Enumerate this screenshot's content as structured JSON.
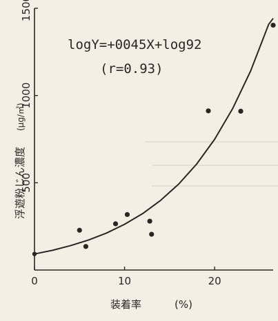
{
  "chart_data": {
    "type": "scatter",
    "title": "",
    "annotation": {
      "equation": "logY=+0045X+log92",
      "correlation": "(r=0.93)"
    },
    "xlabel": "装着率",
    "xunit": "(%)",
    "ylabel": "浮遊粉じん濃度",
    "yunit": "(μg/㎥)",
    "xlim": [
      0,
      26.5
    ],
    "ylim": [
      0,
      1500
    ],
    "xticks": [
      0,
      10,
      20
    ],
    "yticks": [
      500,
      1000,
      1500
    ],
    "grid": false,
    "legend": "none",
    "series": [
      {
        "x": [
          5.0,
          5.7,
          9.0,
          10.3,
          12.8,
          13.0,
          19.3,
          22.9,
          26.5
        ],
        "y": [
          228,
          135,
          265,
          318,
          280,
          205,
          912,
          910,
          1403
        ]
      }
    ],
    "fit_curve": {
      "x": [
        0,
        2,
        4,
        6,
        8,
        10,
        12,
        14,
        16,
        18,
        20,
        22,
        24,
        26,
        26.5
      ],
      "y": [
        92,
        113,
        140,
        172,
        212,
        262,
        323,
        399,
        492,
        607,
        749,
        925,
        1141,
        1408,
        1442
      ]
    },
    "colors": {
      "ink": "#2a2622",
      "background": "#f3efe4"
    }
  }
}
